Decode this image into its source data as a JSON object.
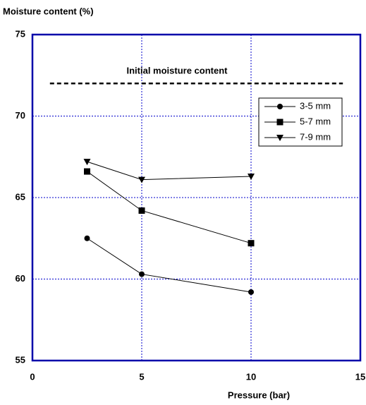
{
  "chart_data": {
    "type": "line",
    "ylabel": "Moisture content (%)",
    "xlabel": "Pressure (bar)",
    "xlim": [
      0,
      15
    ],
    "xticks": [
      0,
      5,
      10,
      15
    ],
    "ylim": [
      55,
      75
    ],
    "yticks": [
      55,
      60,
      65,
      70,
      75
    ],
    "grid": true,
    "grid_color": "#0000cc",
    "frame_color": "#0000aa",
    "legend": "upper right",
    "reference_line": {
      "label": "Initial moisture content",
      "y": 72,
      "x": [
        0.8,
        14.2
      ],
      "color": "#000000"
    },
    "series": [
      {
        "name": "3-5 mm",
        "color": "#000000",
        "marker": "circle",
        "x": [
          2.5,
          5,
          10
        ],
        "values": [
          62.5,
          60.3,
          59.2
        ]
      },
      {
        "name": "5-7 mm",
        "color": "#000000",
        "marker": "square",
        "x": [
          2.5,
          5,
          10
        ],
        "values": [
          66.6,
          64.2,
          62.2
        ]
      },
      {
        "name": "7-9 mm",
        "color": "#000000",
        "marker": "triangle-down",
        "x": [
          2.5,
          5,
          10
        ],
        "values": [
          67.2,
          66.1,
          66.3
        ]
      }
    ]
  }
}
